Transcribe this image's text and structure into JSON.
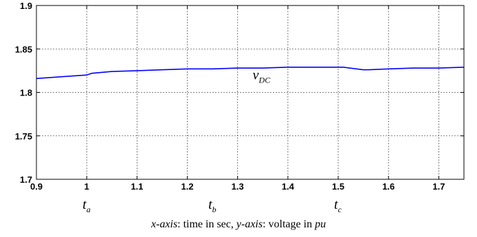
{
  "chart_data": {
    "type": "line",
    "xlim": [
      0.9,
      1.75
    ],
    "ylim": [
      1.7,
      1.9
    ],
    "x_ticks": [
      0.9,
      1.0,
      1.1,
      1.2,
      1.3,
      1.4,
      1.5,
      1.6,
      1.7
    ],
    "x_tick_labels": [
      "0.9",
      "1",
      "1.1",
      "1.2",
      "1.3",
      "1.4",
      "1.5",
      "1.6",
      "1.7"
    ],
    "y_ticks": [
      1.7,
      1.75,
      1.8,
      1.85,
      1.9
    ],
    "y_tick_labels": [
      "1.7",
      "1.75",
      "1.8",
      "1.85",
      "1.9"
    ],
    "grid": true,
    "series": [
      {
        "name": "v_DC",
        "color": "#0000ff",
        "x": [
          0.9,
          0.95,
          1.0,
          1.01,
          1.05,
          1.1,
          1.15,
          1.2,
          1.25,
          1.3,
          1.35,
          1.4,
          1.45,
          1.5,
          1.51,
          1.55,
          1.56,
          1.6,
          1.65,
          1.7,
          1.75
        ],
        "y": [
          1.816,
          1.818,
          1.82,
          1.822,
          1.824,
          1.825,
          1.826,
          1.827,
          1.827,
          1.828,
          1.828,
          1.829,
          1.829,
          1.829,
          1.829,
          1.826,
          1.826,
          1.827,
          1.828,
          1.828,
          1.829
        ]
      }
    ],
    "annotations": [
      {
        "id": "vdc",
        "main": "v",
        "sub": "DC",
        "x": 1.33,
        "y": 1.815
      }
    ],
    "time_markers": [
      {
        "id": "ta",
        "main": "t",
        "sub": "a",
        "x": 1.0
      },
      {
        "id": "tb",
        "main": "t",
        "sub": "b",
        "x": 1.25
      },
      {
        "id": "tc",
        "main": "t",
        "sub": "c",
        "x": 1.5
      }
    ]
  },
  "caption": {
    "part1_italic": "x-axis",
    "part2": ": time in sec, ",
    "part3_italic": "y-axis",
    "part4": ": voltage in ",
    "part5_italic": "pu"
  }
}
